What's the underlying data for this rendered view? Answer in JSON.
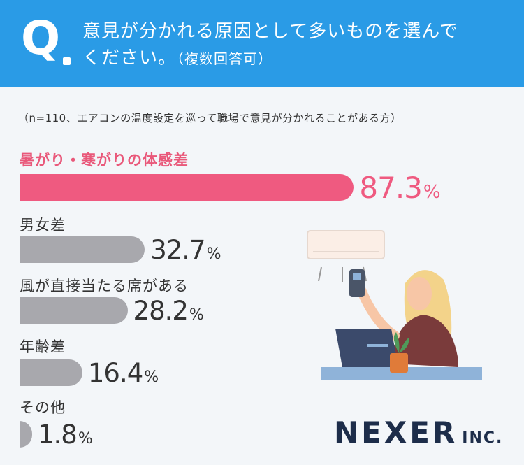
{
  "header": {
    "q_mark": "Q",
    "question_line1": "意見が分かれる原因として多いものを選んで",
    "question_line2": "ください。",
    "question_sub": "（複数回答可）"
  },
  "note": "（n=110、エアコンの温度設定を巡って職場で意見が分かれることがある方）",
  "chart_data": {
    "type": "bar",
    "orientation": "horizontal",
    "categories": [
      "暑がり・寒がりの体感差",
      "男女差",
      "風が直接当たる席がある",
      "年齢差",
      "その他"
    ],
    "values": [
      87.3,
      32.7,
      28.2,
      16.4,
      1.8
    ],
    "unit": "%",
    "xlim": [
      0,
      100
    ],
    "highlight_color": "#ef5a80",
    "bar_color": "#a8a8ad"
  },
  "logo": {
    "name": "NEXER",
    "suffix": "INC."
  }
}
